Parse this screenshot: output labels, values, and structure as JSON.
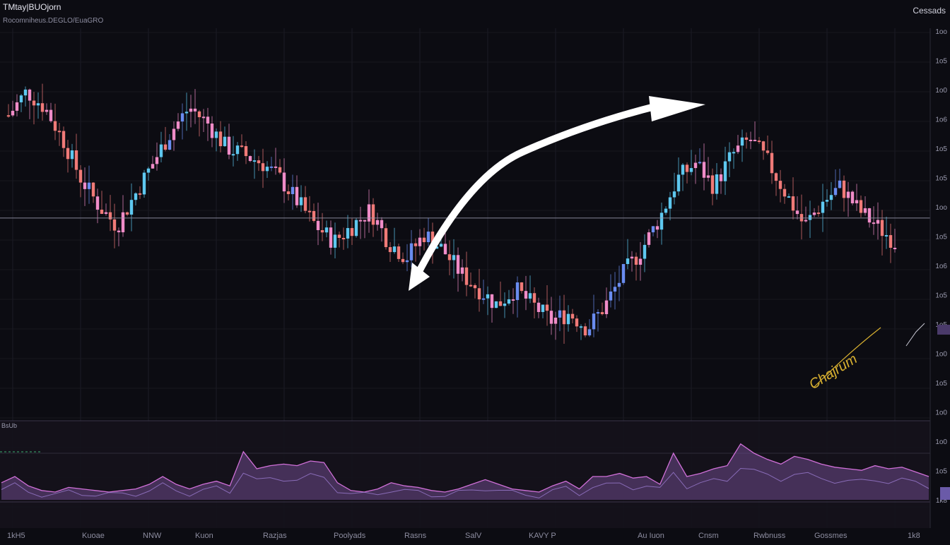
{
  "header": {
    "title": "TMtay|BUOjorn",
    "subtitle": "Rocomniheus.DEGLO/EuaGRO",
    "right_label": "Cessads"
  },
  "colors": {
    "background": "#0c0c12",
    "candle_up": "#5ec8f0",
    "candle_down": "#f07a78",
    "candle_pink": "#f08cc8",
    "candle_blue": "#6a8cf0",
    "indicator_fill": "#6e4a8c",
    "indicator_line": "#d070d8",
    "arrow": "#ffffff",
    "annotation": "#d8b030",
    "price_line": "#9a9aae"
  },
  "chart_data": {
    "type": "candlestick",
    "title": "",
    "price_line_level": 0.52,
    "price_path": [
      [
        0,
        0.78
      ],
      [
        1,
        0.84
      ],
      [
        2,
        0.8
      ],
      [
        3,
        0.72
      ],
      [
        4,
        0.62
      ],
      [
        5,
        0.55
      ],
      [
        6,
        0.5
      ],
      [
        7,
        0.58
      ],
      [
        8,
        0.66
      ],
      [
        9,
        0.74
      ],
      [
        10,
        0.8
      ],
      [
        11,
        0.76
      ],
      [
        12,
        0.7
      ],
      [
        13,
        0.68
      ],
      [
        14,
        0.66
      ],
      [
        15,
        0.62
      ],
      [
        16,
        0.56
      ],
      [
        17,
        0.5
      ],
      [
        18,
        0.46
      ],
      [
        19,
        0.5
      ],
      [
        20,
        0.54
      ],
      [
        21,
        0.46
      ],
      [
        22,
        0.42
      ],
      [
        23,
        0.48
      ],
      [
        24,
        0.44
      ],
      [
        25,
        0.38
      ],
      [
        26,
        0.34
      ],
      [
        27,
        0.3
      ],
      [
        28,
        0.34
      ],
      [
        29,
        0.3
      ],
      [
        30,
        0.26
      ],
      [
        31,
        0.28
      ],
      [
        32,
        0.24
      ],
      [
        33,
        0.3
      ],
      [
        34,
        0.38
      ],
      [
        35,
        0.44
      ],
      [
        36,
        0.52
      ],
      [
        37,
        0.62
      ],
      [
        38,
        0.66
      ],
      [
        39,
        0.6
      ],
      [
        40,
        0.68
      ],
      [
        41,
        0.72
      ],
      [
        42,
        0.66
      ],
      [
        43,
        0.58
      ],
      [
        44,
        0.5
      ],
      [
        45,
        0.56
      ],
      [
        46,
        0.6
      ],
      [
        47,
        0.54
      ],
      [
        48,
        0.5
      ],
      [
        49,
        0.46
      ]
    ],
    "annotation": "Chajrum",
    "x_tick_labels": [
      "1kH5",
      "Kuoae",
      "NNW",
      "Kuon",
      "Razjas",
      "Poolyads",
      "Rasns",
      "SalV",
      "KAVY P",
      "Au Iuon",
      "Cnsm",
      "Rwbnuss",
      "Gossmes",
      "1k8"
    ],
    "y_tick_labels": [
      "1oo",
      "1o5",
      "1o0",
      "1o6",
      "1o5",
      "1o5",
      "1oo",
      "1o5",
      "1o6",
      "1o5",
      "1o5",
      "1o0",
      "1o5",
      "1o0",
      "1o0",
      "1o5",
      "1k8"
    ]
  },
  "indicator": {
    "label": "BsUb",
    "values": [
      0.22,
      0.3,
      0.18,
      0.12,
      0.1,
      0.16,
      0.14,
      0.12,
      0.1,
      0.12,
      0.14,
      0.2,
      0.3,
      0.2,
      0.14,
      0.2,
      0.24,
      0.18,
      0.62,
      0.4,
      0.44,
      0.46,
      0.44,
      0.5,
      0.48,
      0.22,
      0.12,
      0.1,
      0.14,
      0.22,
      0.18,
      0.16,
      0.12,
      0.1,
      0.14,
      0.2,
      0.26,
      0.2,
      0.14,
      0.12,
      0.1,
      0.18,
      0.24,
      0.14,
      0.3,
      0.3,
      0.34,
      0.28,
      0.3,
      0.2,
      0.6,
      0.3,
      0.34,
      0.4,
      0.44,
      0.72,
      0.6,
      0.52,
      0.46,
      0.56,
      0.52,
      0.46,
      0.42,
      0.4,
      0.38,
      0.44,
      0.4,
      0.42,
      0.36,
      0.3
    ]
  }
}
